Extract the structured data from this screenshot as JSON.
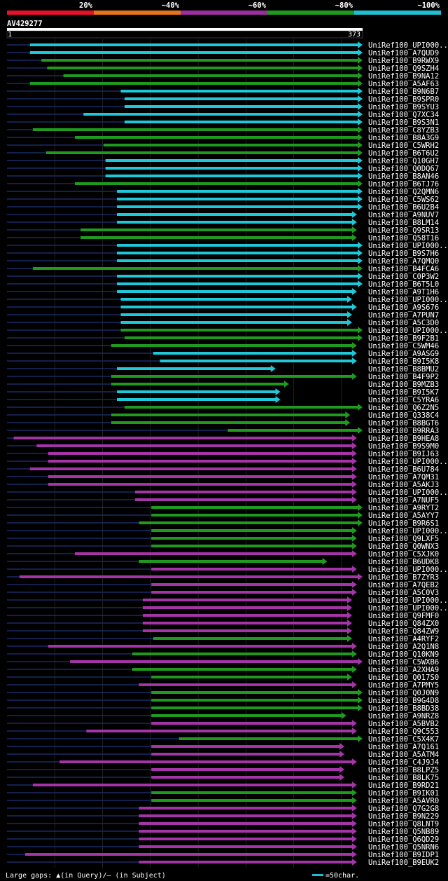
{
  "chart_data": {
    "type": "alignment",
    "query_name": "AV429277",
    "query_start": "1",
    "query_end": "373",
    "query_length": 373,
    "legend": [
      {
        "label": "20%",
        "color": "#e8102a"
      },
      {
        "label": "~40%",
        "color": "#e8741a"
      },
      {
        "label": "~60%",
        "color": "#9b2fa0"
      },
      {
        "label": "~80%",
        "color": "#1f9a1f"
      },
      {
        "label": "~100%",
        "color": "#1fbfcf"
      }
    ],
    "footer_text": "Large gaps: ▲(in Query)/— (in Subject)",
    "scale_text": "=50char.",
    "hits": [
      {
        "name": "UniRef100_UPI000..",
        "start": 25,
        "end": 373,
        "color": "cyan"
      },
      {
        "name": "UniRef100_A7QUD9",
        "start": 25,
        "end": 373,
        "color": "cyan"
      },
      {
        "name": "UniRef100_B9RWX9",
        "start": 37,
        "end": 373,
        "color": "green"
      },
      {
        "name": "UniRef100_Q9SZH4",
        "start": 43,
        "end": 373,
        "color": "green"
      },
      {
        "name": "UniRef100_B9NA12",
        "start": 60,
        "end": 373,
        "color": "green"
      },
      {
        "name": "UniRef100_A5AF63",
        "start": 25,
        "end": 373,
        "color": "green"
      },
      {
        "name": "UniRef100_B9N6B7",
        "start": 120,
        "end": 373,
        "color": "cyan"
      },
      {
        "name": "UniRef100_B9SPR0",
        "start": 124,
        "end": 373,
        "color": "cyan"
      },
      {
        "name": "UniRef100_B9SYU3",
        "start": 124,
        "end": 373,
        "color": "cyan"
      },
      {
        "name": "UniRef100_Q7XC34",
        "start": 81,
        "end": 373,
        "color": "cyan"
      },
      {
        "name": "UniRef100_B9S3N1",
        "start": 124,
        "end": 373,
        "color": "cyan"
      },
      {
        "name": "UniRef100_C8YZB3",
        "start": 28,
        "end": 373,
        "color": "green"
      },
      {
        "name": "UniRef100_B8A3G9",
        "start": 72,
        "end": 373,
        "color": "green"
      },
      {
        "name": "UniRef100_C5WRH2",
        "start": 102,
        "end": 373,
        "color": "green"
      },
      {
        "name": "UniRef100_B6T6U2",
        "start": 42,
        "end": 373,
        "color": "green"
      },
      {
        "name": "UniRef100_Q10GH7",
        "start": 104,
        "end": 373,
        "color": "cyan"
      },
      {
        "name": "UniRef100_Q0DQ67",
        "start": 104,
        "end": 373,
        "color": "cyan"
      },
      {
        "name": "UniRef100_B8AN46",
        "start": 104,
        "end": 373,
        "color": "cyan"
      },
      {
        "name": "UniRef100_B6TJ76",
        "start": 72,
        "end": 373,
        "color": "green"
      },
      {
        "name": "UniRef100_Q2QMN6",
        "start": 116,
        "end": 373,
        "color": "cyan"
      },
      {
        "name": "UniRef100_C5WS62",
        "start": 116,
        "end": 373,
        "color": "cyan"
      },
      {
        "name": "UniRef100_B6U2B4",
        "start": 116,
        "end": 373,
        "color": "cyan"
      },
      {
        "name": "UniRef100_A9NUV7",
        "start": 116,
        "end": 367,
        "color": "cyan"
      },
      {
        "name": "UniRef100_B8LM14",
        "start": 116,
        "end": 367,
        "color": "cyan"
      },
      {
        "name": "UniRef100_Q9SR13",
        "start": 78,
        "end": 367,
        "color": "green"
      },
      {
        "name": "UniRef100_Q58T16",
        "start": 78,
        "end": 367,
        "color": "green"
      },
      {
        "name": "UniRef100_UPI000..",
        "start": 116,
        "end": 373,
        "color": "cyan"
      },
      {
        "name": "UniRef100_B9S7H6",
        "start": 116,
        "end": 373,
        "color": "cyan"
      },
      {
        "name": "UniRef100_A7QMQ0",
        "start": 116,
        "end": 373,
        "color": "cyan"
      },
      {
        "name": "UniRef100_B4FCA6",
        "start": 28,
        "end": 373,
        "color": "green"
      },
      {
        "name": "UniRef100_C0P3W2",
        "start": 116,
        "end": 373,
        "color": "cyan"
      },
      {
        "name": "UniRef100_B6T5L0",
        "start": 116,
        "end": 373,
        "color": "cyan"
      },
      {
        "name": "UniRef100_A9T1H6",
        "start": 116,
        "end": 367,
        "color": "cyan"
      },
      {
        "name": "UniRef100_UPI000..",
        "start": 120,
        "end": 362,
        "color": "cyan"
      },
      {
        "name": "UniRef100_A9S676",
        "start": 120,
        "end": 367,
        "color": "cyan"
      },
      {
        "name": "UniRef100_A7PUN7",
        "start": 120,
        "end": 362,
        "color": "cyan"
      },
      {
        "name": "UniRef100_A5C3D0",
        "start": 120,
        "end": 362,
        "color": "cyan"
      },
      {
        "name": "UniRef100_UPI000..",
        "start": 120,
        "end": 373,
        "color": "green"
      },
      {
        "name": "UniRef100_B9F2B1",
        "start": 124,
        "end": 373,
        "color": "green"
      },
      {
        "name": "UniRef100_C5WM46",
        "start": 110,
        "end": 367,
        "color": "green"
      },
      {
        "name": "UniRef100_A9ASG9",
        "start": 154,
        "end": 367,
        "color": "cyan"
      },
      {
        "name": "UniRef100_B9I5K8",
        "start": 161,
        "end": 367,
        "color": "cyan"
      },
      {
        "name": "UniRef100_B8BMU2",
        "start": 116,
        "end": 282,
        "color": "cyan"
      },
      {
        "name": "UniRef100_B4F9P2",
        "start": 110,
        "end": 367,
        "color": "green"
      },
      {
        "name": "UniRef100_B9MZB3",
        "start": 110,
        "end": 296,
        "color": "green"
      },
      {
        "name": "UniRef100_B9I5K7",
        "start": 116,
        "end": 287,
        "color": "cyan"
      },
      {
        "name": "UniRef100_C5YRA6",
        "start": 116,
        "end": 287,
        "color": "cyan"
      },
      {
        "name": "UniRef100_Q6Z2N5",
        "start": 124,
        "end": 373,
        "color": "green"
      },
      {
        "name": "UniRef100_Q338C4",
        "start": 110,
        "end": 360,
        "color": "green"
      },
      {
        "name": "UniRef100_B8BGT6",
        "start": 110,
        "end": 360,
        "color": "green"
      },
      {
        "name": "UniRef100_B9RRA3",
        "start": 232,
        "end": 373,
        "color": "green"
      },
      {
        "name": "UniRef100_B9HEA8",
        "start": 8,
        "end": 367,
        "color": "purple"
      },
      {
        "name": "UniRef100_B9S9M0",
        "start": 32,
        "end": 367,
        "color": "purple"
      },
      {
        "name": "UniRef100_B9IJ63",
        "start": 44,
        "end": 367,
        "color": "purple"
      },
      {
        "name": "UniRef100_UPI000..",
        "start": 44,
        "end": 367,
        "color": "purple"
      },
      {
        "name": "UniRef100_B6U784",
        "start": 25,
        "end": 367,
        "color": "purple"
      },
      {
        "name": "UniRef100_A7QM31",
        "start": 44,
        "end": 367,
        "color": "purple"
      },
      {
        "name": "UniRef100_A5AKJ3",
        "start": 44,
        "end": 367,
        "color": "purple"
      },
      {
        "name": "UniRef100_UPI000..",
        "start": 135,
        "end": 367,
        "color": "purple"
      },
      {
        "name": "UniRef100_A7NUF5",
        "start": 135,
        "end": 367,
        "color": "purple"
      },
      {
        "name": "UniRef100_A9RYT2",
        "start": 152,
        "end": 373,
        "color": "green"
      },
      {
        "name": "UniRef100_A5AYY7",
        "start": 152,
        "end": 373,
        "color": "green"
      },
      {
        "name": "UniRef100_B9R6S1",
        "start": 139,
        "end": 373,
        "color": "green"
      },
      {
        "name": "UniRef100_UPI000..",
        "start": 152,
        "end": 367,
        "color": "green"
      },
      {
        "name": "UniRef100_Q9LXF5",
        "start": 152,
        "end": 367,
        "color": "green"
      },
      {
        "name": "UniRef100_Q0WNX3",
        "start": 152,
        "end": 367,
        "color": "green"
      },
      {
        "name": "UniRef100_C5XJK0",
        "start": 72,
        "end": 367,
        "color": "purple"
      },
      {
        "name": "UniRef100_B6UDK8",
        "start": 139,
        "end": 336,
        "color": "green"
      },
      {
        "name": "UniRef100_UPI000..",
        "start": 152,
        "end": 367,
        "color": "purple"
      },
      {
        "name": "UniRef100_B7ZYR3",
        "start": 14,
        "end": 373,
        "color": "purple"
      },
      {
        "name": "UniRef100_A7QEB2",
        "start": 152,
        "end": 367,
        "color": "purple"
      },
      {
        "name": "UniRef100_A5C0V3",
        "start": 152,
        "end": 367,
        "color": "purple"
      },
      {
        "name": "UniRef100_UPI000..",
        "start": 143,
        "end": 362,
        "color": "purple"
      },
      {
        "name": "UniRef100_UPI000..",
        "start": 143,
        "end": 362,
        "color": "purple"
      },
      {
        "name": "UniRef100_Q9FMF0",
        "start": 143,
        "end": 362,
        "color": "purple"
      },
      {
        "name": "UniRef100_Q84ZX0",
        "start": 143,
        "end": 362,
        "color": "purple"
      },
      {
        "name": "UniRef100_Q84ZW9",
        "start": 143,
        "end": 362,
        "color": "purple"
      },
      {
        "name": "UniRef100_A4RYF2",
        "start": 154,
        "end": 362,
        "color": "green"
      },
      {
        "name": "UniRef100_A2Q1N8",
        "start": 44,
        "end": 367,
        "color": "purple"
      },
      {
        "name": "UniRef100_Q10KN9",
        "start": 132,
        "end": 367,
        "color": "green"
      },
      {
        "name": "UniRef100_C5WXB6",
        "start": 67,
        "end": 373,
        "color": "purple"
      },
      {
        "name": "UniRef100_A2XHA9",
        "start": 132,
        "end": 367,
        "color": "green"
      },
      {
        "name": "UniRef100_Q017S0",
        "start": 152,
        "end": 362,
        "color": "green"
      },
      {
        "name": "UniRef100_A7PMY5",
        "start": 139,
        "end": 367,
        "color": "purple"
      },
      {
        "name": "UniRef100_Q0J0N9",
        "start": 152,
        "end": 373,
        "color": "green"
      },
      {
        "name": "UniRef100_B9G4D8",
        "start": 152,
        "end": 373,
        "color": "green"
      },
      {
        "name": "UniRef100_B8BD38",
        "start": 152,
        "end": 373,
        "color": "green"
      },
      {
        "name": "UniRef100_A9NRZ8",
        "start": 152,
        "end": 356,
        "color": "green"
      },
      {
        "name": "UniRef100_A5BVB2",
        "start": 152,
        "end": 367,
        "color": "purple"
      },
      {
        "name": "UniRef100_Q9C553",
        "start": 84,
        "end": 367,
        "color": "purple"
      },
      {
        "name": "UniRef100_C5X4K7",
        "start": 181,
        "end": 373,
        "color": "green"
      },
      {
        "name": "UniRef100_A7Q161",
        "start": 152,
        "end": 354,
        "color": "purple"
      },
      {
        "name": "UniRef100_A5ATM4",
        "start": 152,
        "end": 354,
        "color": "purple"
      },
      {
        "name": "UniRef100_C4J9J4",
        "start": 56,
        "end": 367,
        "color": "purple"
      },
      {
        "name": "UniRef100_B8LPZ5",
        "start": 152,
        "end": 354,
        "color": "purple"
      },
      {
        "name": "UniRef100_B8LK75",
        "start": 152,
        "end": 354,
        "color": "purple"
      },
      {
        "name": "UniRef100_B9RD21",
        "start": 28,
        "end": 367,
        "color": "purple"
      },
      {
        "name": "UniRef100_B9IK01",
        "start": 152,
        "end": 367,
        "color": "green"
      },
      {
        "name": "UniRef100_A5AVR0",
        "start": 152,
        "end": 367,
        "color": "green"
      },
      {
        "name": "UniRef100_Q7G2G8",
        "start": 139,
        "end": 367,
        "color": "purple"
      },
      {
        "name": "UniRef100_B9N229",
        "start": 139,
        "end": 367,
        "color": "purple"
      },
      {
        "name": "UniRef100_Q8LNT9",
        "start": 139,
        "end": 367,
        "color": "purple"
      },
      {
        "name": "UniRef100_Q5NB89",
        "start": 139,
        "end": 367,
        "color": "purple"
      },
      {
        "name": "UniRef100_Q6QD29",
        "start": 139,
        "end": 367,
        "color": "purple"
      },
      {
        "name": "UniRef100_Q5NRN6",
        "start": 139,
        "end": 367,
        "color": "purple"
      },
      {
        "name": "UniRef100_B9IDP1",
        "start": 20,
        "end": 367,
        "color": "purple"
      },
      {
        "name": "UniRef100_B9EUK2",
        "start": 139,
        "end": 367,
        "color": "purple"
      }
    ]
  }
}
